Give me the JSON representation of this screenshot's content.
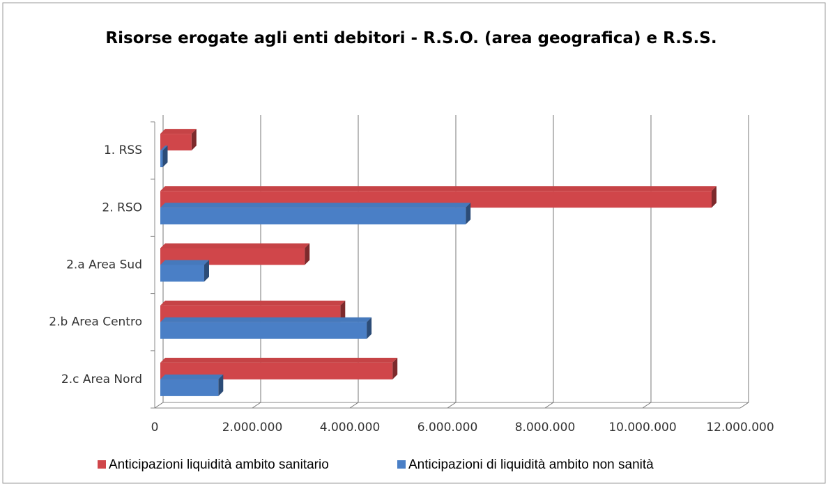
{
  "chart_data": {
    "type": "bar3d_horizontal",
    "title": "Risorse erogate agli enti debitori - R.S.O. (area geografica) e R.S.S.",
    "categories": [
      "1. RSS",
      "2. RSO",
      "2.a Area Sud",
      "2.b Area Centro",
      "2.c Area Nord"
    ],
    "series": [
      {
        "name": "Anticipazioni liquidità ambito sanitario",
        "color": "#d0464a",
        "values": [
          640000,
          11300000,
          2960000,
          3690000,
          4760000
        ]
      },
      {
        "name": "Anticipazioni di liquidità ambito non sanità",
        "color": "#4a7fc6",
        "values": [
          50000,
          6260000,
          900000,
          4230000,
          1190000
        ]
      }
    ],
    "xlim": [
      0,
      12000000
    ],
    "xticks": [
      0,
      {
        "value": 2000000,
        "label": "2.000.000"
      },
      {
        "value": 4000000,
        "label": "4.000.000"
      },
      {
        "value": 6000000,
        "label": "6.000.000"
      },
      {
        "value": 8000000,
        "label": "8.000.000"
      },
      {
        "value": 10000000,
        "label": "10.000.000"
      },
      {
        "value": 12000000,
        "label": "12.000.000"
      }
    ],
    "grid": true,
    "legend": "bottom"
  }
}
